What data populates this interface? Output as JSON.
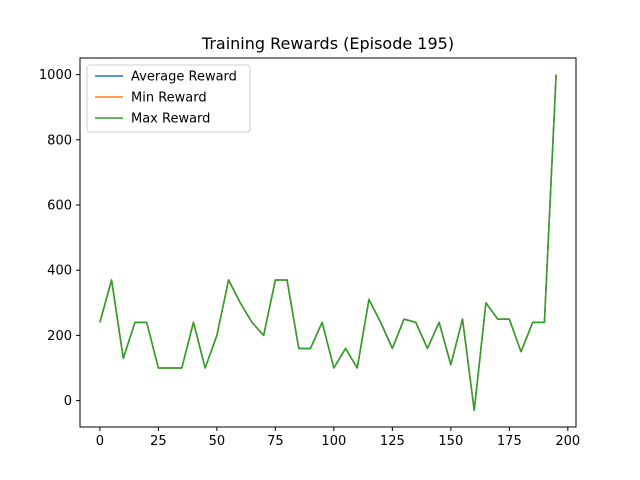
{
  "chart_data": {
    "type": "line",
    "title": "Training Rewards (Episode 195)",
    "xlabel": "",
    "ylabel": "",
    "xlim": [
      -8.5,
      203.5
    ],
    "ylim": [
      -81,
      1051
    ],
    "xticks": [
      0,
      25,
      50,
      75,
      100,
      125,
      150,
      175,
      200
    ],
    "yticks": [
      0,
      200,
      400,
      600,
      800,
      1000
    ],
    "grid": false,
    "legend_position": "top-left",
    "x": [
      0,
      5,
      10,
      15,
      20,
      25,
      30,
      35,
      40,
      45,
      50,
      55,
      60,
      65,
      70,
      75,
      80,
      85,
      90,
      95,
      100,
      105,
      110,
      115,
      120,
      125,
      130,
      135,
      140,
      145,
      150,
      155,
      160,
      165,
      170,
      175,
      180,
      185,
      190,
      195
    ],
    "series": [
      {
        "name": "Average Reward",
        "color": "#1f77b4",
        "values": [
          240,
          370,
          130,
          240,
          240,
          100,
          100,
          100,
          240,
          100,
          200,
          370,
          300,
          240,
          200,
          370,
          370,
          160,
          160,
          240,
          100,
          160,
          100,
          310,
          240,
          160,
          250,
          240,
          160,
          240,
          110,
          250,
          -30,
          300,
          250,
          250,
          150,
          240,
          240,
          1000
        ]
      },
      {
        "name": "Min Reward",
        "color": "#ff7f0e",
        "values": [
          240,
          370,
          130,
          240,
          240,
          100,
          100,
          100,
          240,
          100,
          200,
          370,
          300,
          240,
          200,
          370,
          370,
          160,
          160,
          240,
          100,
          160,
          100,
          310,
          240,
          160,
          250,
          240,
          160,
          240,
          110,
          250,
          -30,
          300,
          250,
          250,
          150,
          240,
          240,
          1000
        ]
      },
      {
        "name": "Max Reward",
        "color": "#2ca02c",
        "values": [
          240,
          370,
          130,
          240,
          240,
          100,
          100,
          100,
          240,
          100,
          200,
          370,
          300,
          240,
          200,
          370,
          370,
          160,
          160,
          240,
          100,
          160,
          100,
          310,
          240,
          160,
          250,
          240,
          160,
          240,
          110,
          250,
          -30,
          300,
          250,
          250,
          150,
          240,
          240,
          1000
        ]
      }
    ]
  }
}
